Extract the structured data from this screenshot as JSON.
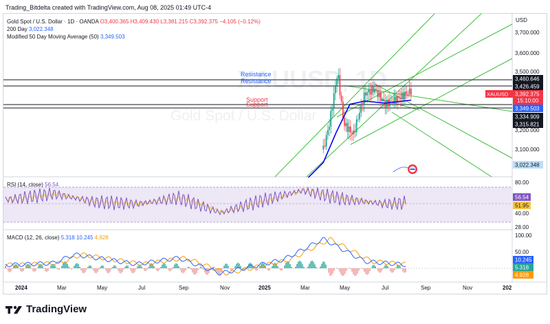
{
  "header": {
    "created_by": "Trading_Bitdelta created with TradingView.com, Aug 08, 2025 01:49 UTC-4"
  },
  "legend": {
    "symbol": "Gold Spot / U.S. Dollar · 1D · OANDA",
    "open": "O3,400.365",
    "high": "H3,409.430",
    "low": "L3,381.215",
    "close": "C3,392.375",
    "change": "−4.105 (−0.12%)",
    "sma200_label": "200 Day",
    "sma200_value": "3,022.348",
    "sma50_label": "Modified 50 Day Moving Average (50)",
    "sma50_value": "3,349.503",
    "rsi_label": "RSI (14, close)",
    "rsi_value": "56.54",
    "macd_label": "MACD (12, 26, close)",
    "macd_value1": "5.318",
    "macd_value2": "10.245",
    "macd_value3": "4.928"
  },
  "watermark": {
    "big": "XAUUSD, 1D",
    "sub": "Gold Spot / U.S. Dollar"
  },
  "currency": "USD",
  "annotations": {
    "resistance": "Resistance",
    "support": "Support"
  },
  "price_axis": {
    "ticks": [
      "3,700.000",
      "3,600.000",
      "3,500.000",
      "3,200.000",
      "3,100.000"
    ]
  },
  "price_tags": {
    "r1": "3,460.646",
    "r2": "3,426.459",
    "symbol": "XAUUSD",
    "last": "3,392.375",
    "countdown": "15:10:00",
    "sma50": "3,349.503",
    "s1": "3,334.909",
    "s2": "3,315.821",
    "sma200": "3,022.348"
  },
  "rsi_axis": {
    "ticks": [
      "80.00",
      "40.00",
      "28.00"
    ],
    "tag1": "56.54",
    "tag2": "51.95"
  },
  "macd_axis": {
    "ticks": [
      "100.00",
      "50.00"
    ],
    "tag1": "10.245",
    "tag2": "5.318",
    "tag3": "4.928"
  },
  "time_axis": {
    "labels": [
      "2024",
      "Mar",
      "May",
      "Jul",
      "Sep",
      "Nov",
      "2025",
      "Mar",
      "May",
      "Jul",
      "Sep",
      "Nov",
      "202"
    ]
  },
  "colors": {
    "up": "#089981",
    "down": "#f23645",
    "sma50": "#0000ff",
    "sma200": "#2962ff",
    "channel": "#3fbf3f",
    "rsi": "#7e57c2",
    "rsi_band": "#ede7f6",
    "macd": "#2962ff",
    "signal": "#ff9800"
  },
  "brand": {
    "name": "TradingView"
  },
  "chart_data": [
    {
      "type": "line",
      "title": "Gold Spot / U.S. Dollar · 1D · OANDA",
      "ylim": [
        3000,
        3750
      ],
      "annotations": [
        {
          "text": "Resistance",
          "y": 3460.646
        },
        {
          "text": "Resistance",
          "y": 3426.459
        },
        {
          "text": "Support",
          "y": 3334.909
        },
        {
          "text": "Support",
          "y": 3315.821
        }
      ],
      "series": [
        {
          "name": "Close",
          "x": [
            "2025-04-01",
            "2025-04-10",
            "2025-04-22",
            "2025-05-01",
            "2025-05-15",
            "2025-06-01",
            "2025-06-15",
            "2025-07-01",
            "2025-07-15",
            "2025-08-08"
          ],
          "values": [
            3120,
            3240,
            3480,
            3240,
            3190,
            3380,
            3400,
            3330,
            3350,
            3392.375
          ]
        },
        {
          "name": "Modified 50 Day Moving Average (50)",
          "x": [
            "2025-03-10",
            "2025-04-01",
            "2025-04-20",
            "2025-05-10",
            "2025-06-01",
            "2025-07-01",
            "2025-08-08"
          ],
          "values": [
            2990,
            3060,
            3200,
            3330,
            3345,
            3335,
            3349.503
          ]
        },
        {
          "name": "200 Day",
          "x": [
            "2025-08-08"
          ],
          "values": [
            3022.348
          ]
        }
      ]
    },
    {
      "type": "line",
      "title": "RSI (14, close)",
      "ylim": [
        28,
        80
      ],
      "series": [
        {
          "name": "RSI",
          "x": [
            "2024-01",
            "2024-03",
            "2024-05",
            "2024-07",
            "2024-09",
            "2024-11",
            "2025-01",
            "2025-03",
            "2025-05",
            "2025-07",
            "2025-08"
          ],
          "values": [
            62,
            70,
            58,
            55,
            64,
            42,
            60,
            75,
            62,
            55,
            56.54
          ]
        },
        {
          "name": "RSI-based MA",
          "x": [
            "2025-08"
          ],
          "values": [
            51.95
          ]
        }
      ]
    },
    {
      "type": "line",
      "title": "MACD (12, 26, close)",
      "ylim": [
        -30,
        100
      ],
      "series": [
        {
          "name": "MACD",
          "x": [
            "2024-01",
            "2024-03",
            "2024-04",
            "2024-07",
            "2024-09",
            "2024-11",
            "2025-02",
            "2025-04",
            "2025-06",
            "2025-08"
          ],
          "values": [
            10,
            15,
            40,
            12,
            30,
            -15,
            25,
            85,
            20,
            10.245
          ]
        },
        {
          "name": "Signal",
          "x": [
            "2025-08"
          ],
          "values": [
            5.318
          ]
        },
        {
          "name": "Histogram",
          "x": [
            "2025-08"
          ],
          "values": [
            4.928
          ]
        }
      ]
    }
  ]
}
